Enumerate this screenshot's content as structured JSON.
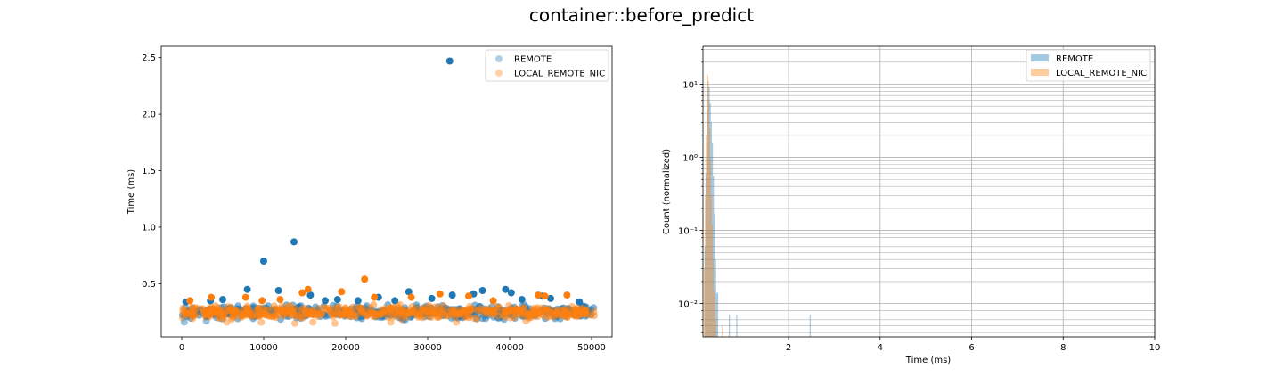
{
  "figure": {
    "title": "container::before_predict"
  },
  "colors": {
    "remote": "#1f77b4",
    "local_remote_nic": "#ff7f0e",
    "grid": "#b0b0b0"
  },
  "chart_data": [
    {
      "type": "scatter",
      "title": "",
      "xlabel": "",
      "ylabel": "Time (ms)",
      "xlim": [
        -2500,
        52500
      ],
      "ylim": [
        0.03,
        2.6
      ],
      "xticks": [
        0,
        10000,
        20000,
        30000,
        40000,
        50000
      ],
      "xtick_labels": [
        "0",
        "10000",
        "20000",
        "30000",
        "40000",
        "50000"
      ],
      "yticks": [
        0.5,
        1.0,
        1.5,
        2.0,
        2.5
      ],
      "ytick_labels": [
        "0.5",
        "1.0",
        "1.5",
        "2.0",
        "2.5"
      ],
      "legend": {
        "placement": "top-right",
        "entries": [
          "REMOTE",
          "LOCAL_REMOTE_NIC"
        ]
      },
      "grid": false,
      "dense_band": {
        "x_range": [
          0,
          50500
        ],
        "y_range": [
          0.17,
          0.33
        ]
      },
      "series": [
        {
          "name": "REMOTE",
          "color": "#1f77b4",
          "outliers": [
            {
              "x": 32700,
              "y": 2.47
            },
            {
              "x": 13700,
              "y": 0.87
            },
            {
              "x": 10000,
              "y": 0.7
            },
            {
              "x": 8000,
              "y": 0.45
            },
            {
              "x": 11800,
              "y": 0.44
            },
            {
              "x": 15700,
              "y": 0.4
            },
            {
              "x": 36700,
              "y": 0.44
            },
            {
              "x": 39500,
              "y": 0.45
            },
            {
              "x": 27700,
              "y": 0.43
            },
            {
              "x": 40200,
              "y": 0.42
            },
            {
              "x": 35600,
              "y": 0.41
            },
            {
              "x": 33000,
              "y": 0.4
            },
            {
              "x": 44000,
              "y": 0.39
            },
            {
              "x": 24000,
              "y": 0.38
            },
            {
              "x": 30500,
              "y": 0.37
            },
            {
              "x": 45000,
              "y": 0.37
            },
            {
              "x": 5000,
              "y": 0.36
            },
            {
              "x": 19000,
              "y": 0.36
            },
            {
              "x": 41500,
              "y": 0.36
            },
            {
              "x": 3500,
              "y": 0.35
            },
            {
              "x": 21500,
              "y": 0.35
            },
            {
              "x": 26000,
              "y": 0.35
            },
            {
              "x": 17500,
              "y": 0.35
            },
            {
              "x": 500,
              "y": 0.34
            },
            {
              "x": 48500,
              "y": 0.34
            },
            {
              "x": 300,
              "y": 0.16
            },
            {
              "x": 3000,
              "y": 0.17
            }
          ]
        },
        {
          "name": "LOCAL_REMOTE_NIC",
          "color": "#ff7f0e",
          "outliers": [
            {
              "x": 22300,
              "y": 0.54
            },
            {
              "x": 15400,
              "y": 0.45
            },
            {
              "x": 14700,
              "y": 0.42
            },
            {
              "x": 19500,
              "y": 0.43
            },
            {
              "x": 7800,
              "y": 0.38
            },
            {
              "x": 3600,
              "y": 0.38
            },
            {
              "x": 23500,
              "y": 0.38
            },
            {
              "x": 31500,
              "y": 0.41
            },
            {
              "x": 35000,
              "y": 0.39
            },
            {
              "x": 43500,
              "y": 0.4
            },
            {
              "x": 44300,
              "y": 0.39
            },
            {
              "x": 47000,
              "y": 0.4
            },
            {
              "x": 28000,
              "y": 0.38
            },
            {
              "x": 12000,
              "y": 0.36
            },
            {
              "x": 9800,
              "y": 0.35
            },
            {
              "x": 38000,
              "y": 0.35
            },
            {
              "x": 1000,
              "y": 0.35
            },
            {
              "x": 16000,
              "y": 0.16
            },
            {
              "x": 18700,
              "y": 0.15
            },
            {
              "x": 9700,
              "y": 0.16
            },
            {
              "x": 13800,
              "y": 0.15
            },
            {
              "x": 5500,
              "y": 0.16
            },
            {
              "x": 25500,
              "y": 0.16
            },
            {
              "x": 33500,
              "y": 0.16
            },
            {
              "x": 42000,
              "y": 0.17
            }
          ]
        }
      ]
    },
    {
      "type": "bar",
      "subtype": "histogram",
      "title": "",
      "xlabel": "Time (ms)",
      "ylabel": "Count (normalized)",
      "xlim": [
        0.13,
        10
      ],
      "ylim": [
        0.0035,
        33
      ],
      "yscale": "log",
      "xticks": [
        2,
        4,
        6,
        8,
        10
      ],
      "xtick_labels": [
        "2",
        "4",
        "6",
        "8",
        "10"
      ],
      "yticks": [
        0.01,
        0.1,
        1,
        10
      ],
      "ytick_labels": [
        "10⁻²",
        "10⁻¹",
        "10⁰",
        "10¹"
      ],
      "grid": true,
      "legend": {
        "placement": "top-right",
        "entries": [
          "REMOTE",
          "LOCAL_REMOTE_NIC"
        ]
      },
      "series": [
        {
          "name": "REMOTE",
          "color": "#1f77b4",
          "bin_width": 0.0232,
          "bins": [
            {
              "x": 0.163,
              "y": 0.06
            },
            {
              "x": 0.186,
              "y": 0.6
            },
            {
              "x": 0.209,
              "y": 4.5
            },
            {
              "x": 0.232,
              "y": 11
            },
            {
              "x": 0.255,
              "y": 9
            },
            {
              "x": 0.278,
              "y": 5.5
            },
            {
              "x": 0.301,
              "y": 3.0
            },
            {
              "x": 0.324,
              "y": 1.6
            },
            {
              "x": 0.347,
              "y": 0.55
            },
            {
              "x": 0.37,
              "y": 0.17
            },
            {
              "x": 0.394,
              "y": 0.04
            },
            {
              "x": 0.417,
              "y": 0.014
            },
            {
              "x": 0.44,
              "y": 0.014
            },
            {
              "x": 0.695,
              "y": 0.007
            },
            {
              "x": 0.857,
              "y": 0.007
            },
            {
              "x": 2.46,
              "y": 0.007
            }
          ]
        },
        {
          "name": "LOCAL_REMOTE_NIC",
          "color": "#ff7f0e",
          "bin_width": 0.0195,
          "bins": [
            {
              "x": 0.15,
              "y": 0.03
            },
            {
              "x": 0.17,
              "y": 0.3
            },
            {
              "x": 0.189,
              "y": 2.0
            },
            {
              "x": 0.209,
              "y": 14
            },
            {
              "x": 0.228,
              "y": 13
            },
            {
              "x": 0.248,
              "y": 6.0
            },
            {
              "x": 0.267,
              "y": 2.5
            },
            {
              "x": 0.287,
              "y": 0.9
            },
            {
              "x": 0.306,
              "y": 0.3
            },
            {
              "x": 0.326,
              "y": 0.12
            },
            {
              "x": 0.345,
              "y": 0.04
            },
            {
              "x": 0.365,
              "y": 0.015
            },
            {
              "x": 0.384,
              "y": 0.012
            },
            {
              "x": 0.404,
              "y": 0.006
            },
            {
              "x": 0.54,
              "y": 0.005
            }
          ]
        }
      ]
    }
  ]
}
